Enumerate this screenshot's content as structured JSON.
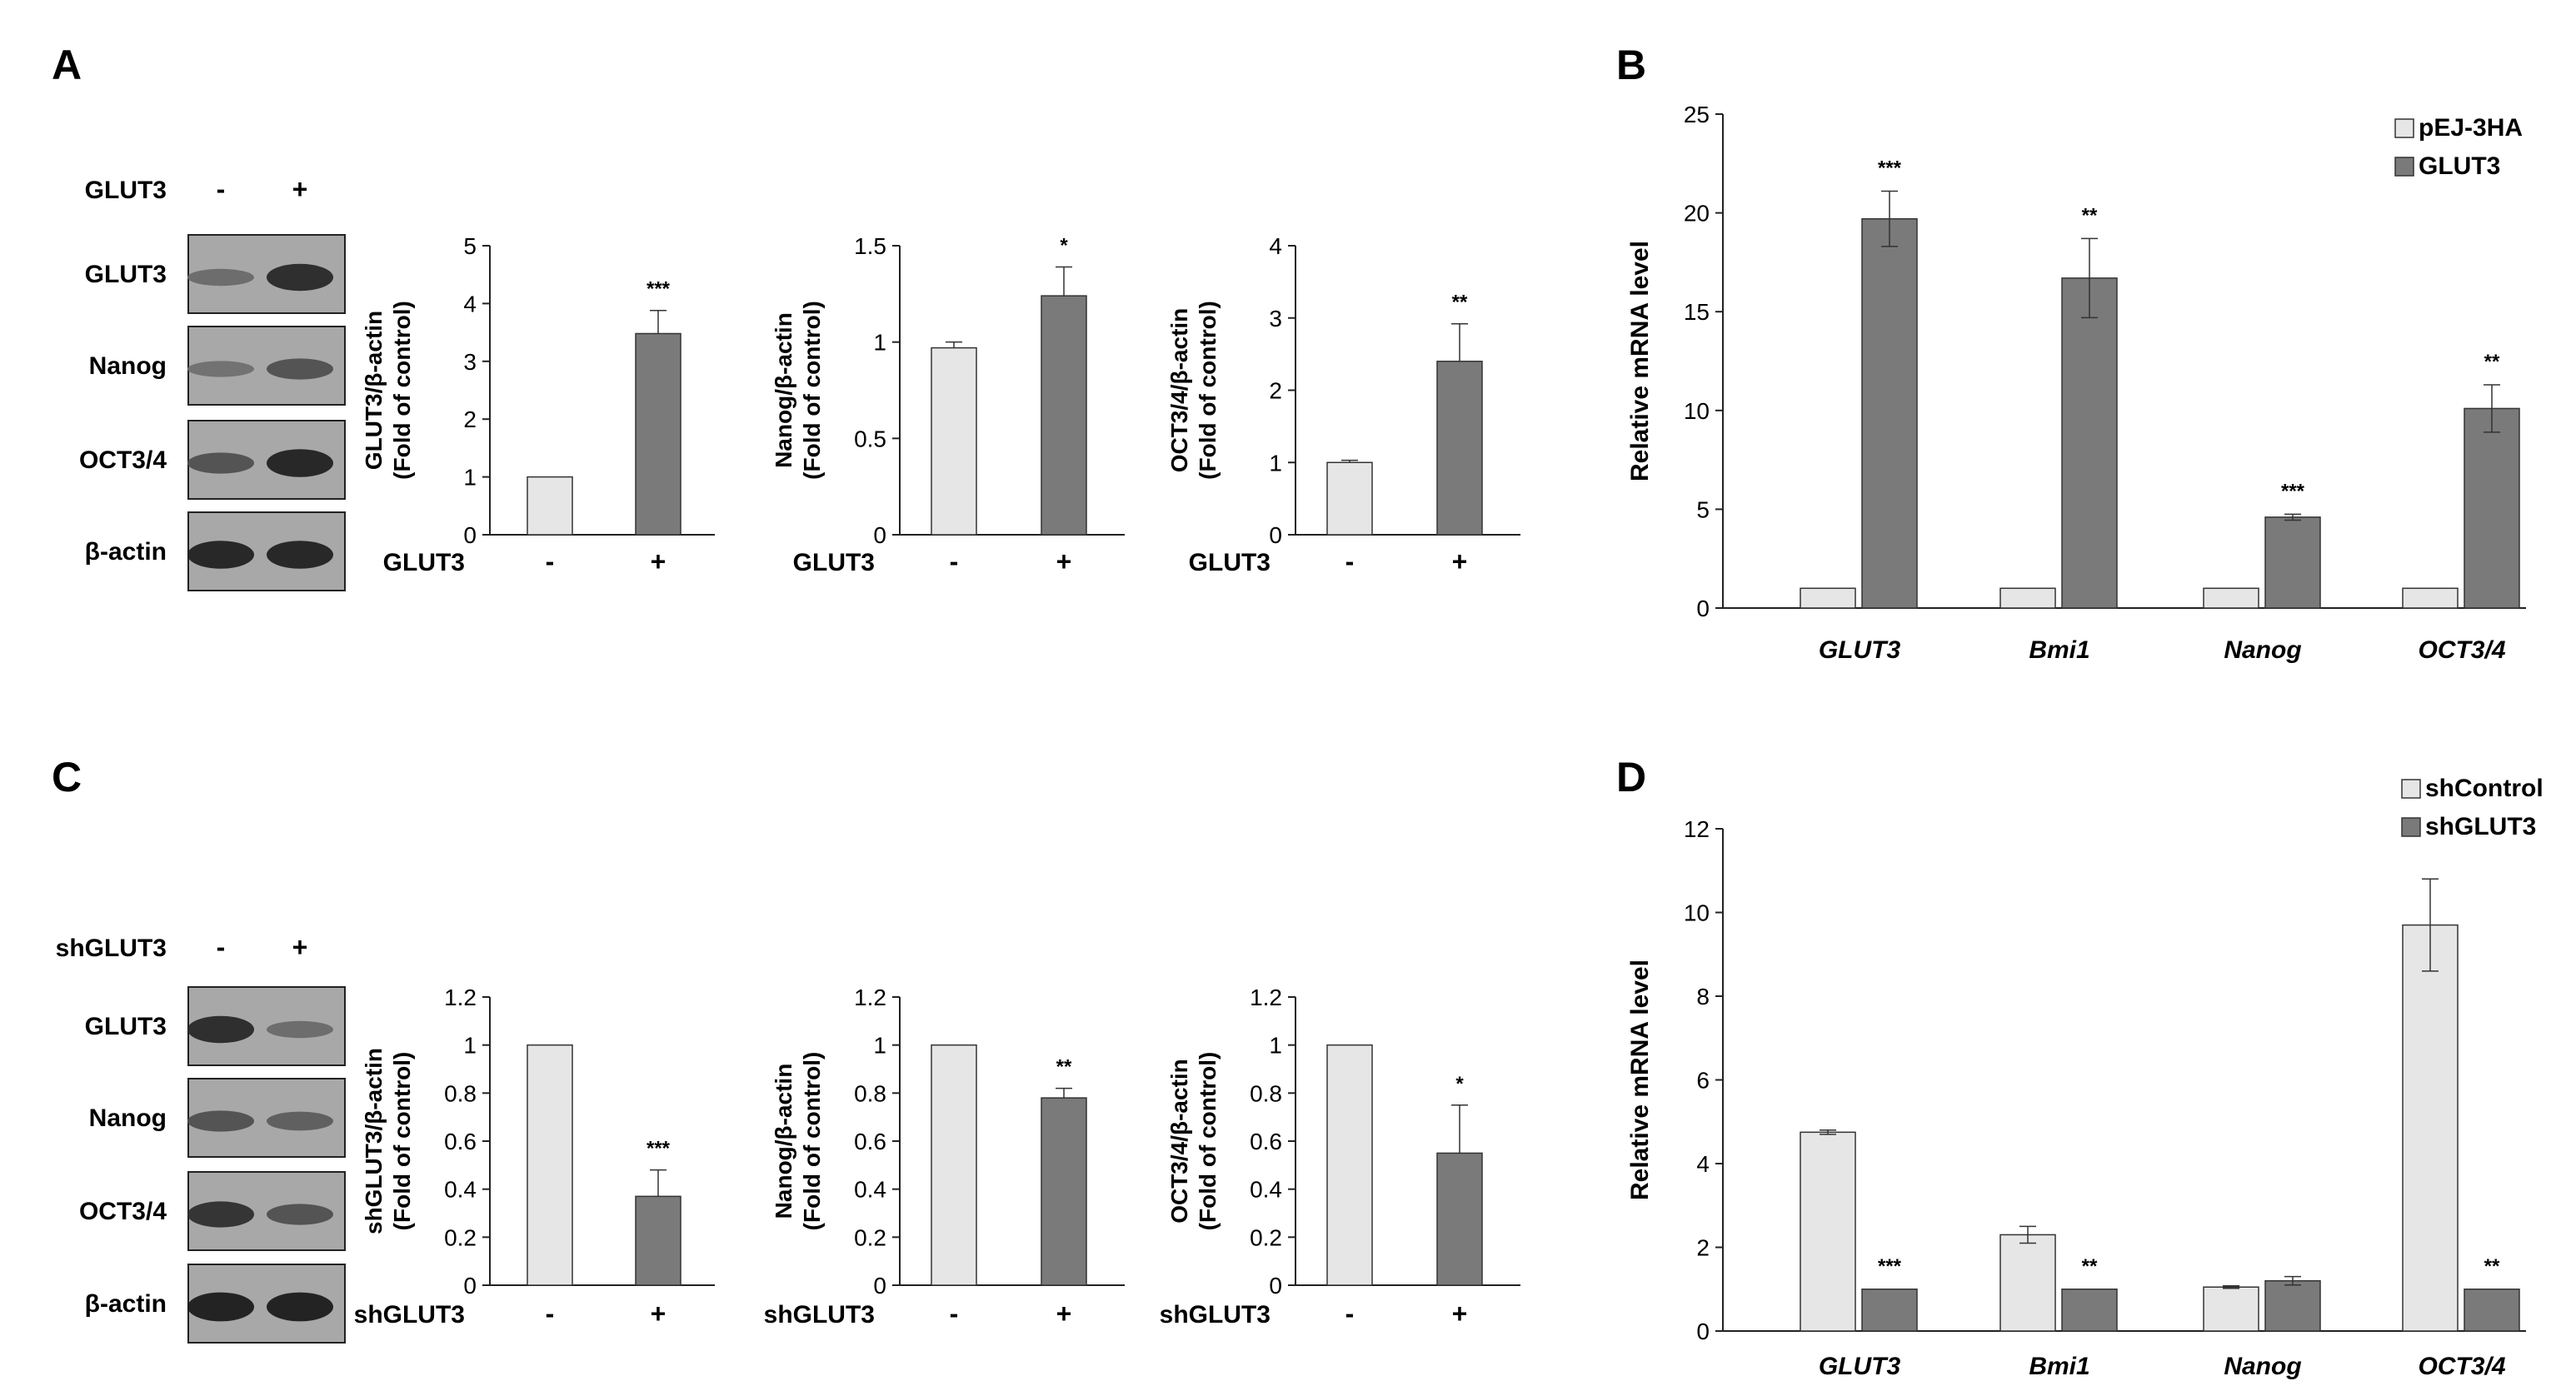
{
  "panels": {
    "a": "A",
    "b": "B",
    "c": "C",
    "d": "D"
  },
  "colors": {
    "light_bar": "#e6e6e6",
    "dark_bar": "#7a7a7a",
    "axis": "#222222",
    "blot_bg": "#9a9a9a"
  },
  "blots": [
    {
      "treatment": "GLUT3",
      "signs": [
        "-",
        "+"
      ],
      "rows": [
        {
          "label": "GLUT3",
          "bands": [
            0.35,
            0.85
          ]
        },
        {
          "label": "Nanog",
          "bands": [
            0.3,
            0.55
          ]
        },
        {
          "label": "OCT3/4",
          "bands": [
            0.55,
            0.9
          ]
        },
        {
          "label": "β-actin",
          "bands": [
            0.9,
            0.9
          ]
        }
      ]
    },
    {
      "treatment": "shGLUT3",
      "signs": [
        "-",
        "+"
      ],
      "rows": [
        {
          "label": "GLUT3",
          "bands": [
            0.85,
            0.35
          ]
        },
        {
          "label": "Nanog",
          "bands": [
            0.55,
            0.45
          ]
        },
        {
          "label": "OCT3/4",
          "bands": [
            0.8,
            0.55
          ]
        },
        {
          "label": "β-actin",
          "bands": [
            0.95,
            0.95
          ]
        }
      ]
    }
  ],
  "chart_data": [
    {
      "id": "a1",
      "type": "bar",
      "ylabel": "GLUT3/β-actin",
      "ylabel2": "(Fold of control)",
      "categories": [
        "-",
        "+"
      ],
      "group_label": "GLUT3",
      "values": [
        1.0,
        3.48
      ],
      "errors": [
        0,
        0.4
      ],
      "ylim": [
        0,
        5
      ],
      "ticks": [
        0,
        1,
        2,
        3,
        4,
        5
      ],
      "annotations": [
        "",
        "***"
      ]
    },
    {
      "id": "a2",
      "type": "bar",
      "ylabel": "Nanog/β-actin",
      "ylabel2": "(Fold of control)",
      "categories": [
        "-",
        "+"
      ],
      "group_label": "GLUT3",
      "values": [
        0.97,
        1.24
      ],
      "errors": [
        0.03,
        0.15
      ],
      "ylim": [
        0,
        1.5
      ],
      "ticks": [
        0,
        0.5,
        1,
        1.5
      ],
      "annotations": [
        "",
        "*"
      ]
    },
    {
      "id": "a3",
      "type": "bar",
      "ylabel": "OCT3/4/β-actin",
      "ylabel2": "(Fold of control)",
      "categories": [
        "-",
        "+"
      ],
      "group_label": "GLUT3",
      "values": [
        1.0,
        2.4
      ],
      "errors": [
        0.03,
        0.52
      ],
      "ylim": [
        0,
        4
      ],
      "ticks": [
        0,
        1,
        2,
        3,
        4
      ],
      "annotations": [
        "",
        "**"
      ]
    },
    {
      "id": "b",
      "type": "bar",
      "ylabel": "Relative mRNA level",
      "categories": [
        "GLUT3",
        "Bmi1",
        "Nanog",
        "OCT3/4"
      ],
      "series": [
        {
          "name": "pEJ-3HA",
          "values": [
            1,
            1,
            1,
            1
          ],
          "errors": [
            0,
            0,
            0,
            0
          ]
        },
        {
          "name": "GLUT3",
          "values": [
            19.7,
            16.7,
            4.6,
            10.1
          ],
          "errors": [
            1.4,
            2.0,
            0.15,
            1.2
          ]
        }
      ],
      "ylim": [
        0,
        25
      ],
      "ticks": [
        0,
        5,
        10,
        15,
        20,
        25
      ],
      "annotations": [
        "***",
        "**",
        "***",
        "**"
      ],
      "legend": "top-right"
    },
    {
      "id": "c1",
      "type": "bar",
      "ylabel": "shGLUT3/β-actin",
      "ylabel2": "(Fold of control)",
      "categories": [
        "-",
        "+"
      ],
      "group_label": "shGLUT3",
      "values": [
        1.0,
        0.37
      ],
      "errors": [
        0,
        0.11
      ],
      "ylim": [
        0,
        1.2
      ],
      "ticks": [
        0,
        0.2,
        0.4,
        0.6,
        0.8,
        1,
        1.2
      ],
      "annotations": [
        "",
        "***"
      ]
    },
    {
      "id": "c2",
      "type": "bar",
      "ylabel": "Nanog/β-actin",
      "ylabel2": "(Fold of control)",
      "categories": [
        "-",
        "+"
      ],
      "group_label": "shGLUT3",
      "values": [
        1.0,
        0.78
      ],
      "errors": [
        0,
        0.04
      ],
      "ylim": [
        0,
        1.2
      ],
      "ticks": [
        0,
        0.2,
        0.4,
        0.6,
        0.8,
        1,
        1.2
      ],
      "annotations": [
        "",
        "**"
      ]
    },
    {
      "id": "c3",
      "type": "bar",
      "ylabel": "OCT3/4/β-actin",
      "ylabel2": "(Fold of control)",
      "categories": [
        "-",
        "+"
      ],
      "group_label": "shGLUT3",
      "values": [
        1.0,
        0.55
      ],
      "errors": [
        0,
        0.2
      ],
      "ylim": [
        0,
        1.2
      ],
      "ticks": [
        0,
        0.2,
        0.4,
        0.6,
        0.8,
        1,
        1.2
      ],
      "annotations": [
        "",
        "*"
      ]
    },
    {
      "id": "d",
      "type": "bar",
      "ylabel": "Relative mRNA level",
      "categories": [
        "GLUT3",
        "Bmi1",
        "Nanog",
        "OCT3/4"
      ],
      "series": [
        {
          "name": "shControl",
          "values": [
            4.75,
            2.3,
            1.05,
            9.7
          ],
          "errors": [
            0.05,
            0.2,
            0.03,
            1.1
          ]
        },
        {
          "name": "shGLUT3",
          "values": [
            1,
            1,
            1.2,
            1
          ],
          "errors": [
            0,
            0,
            0.1,
            0
          ]
        }
      ],
      "ylim": [
        0,
        12
      ],
      "ticks": [
        0,
        2,
        4,
        6,
        8,
        10,
        12
      ],
      "annotations": [
        "***",
        "**",
        "",
        "**"
      ],
      "legend": "top-right"
    }
  ]
}
